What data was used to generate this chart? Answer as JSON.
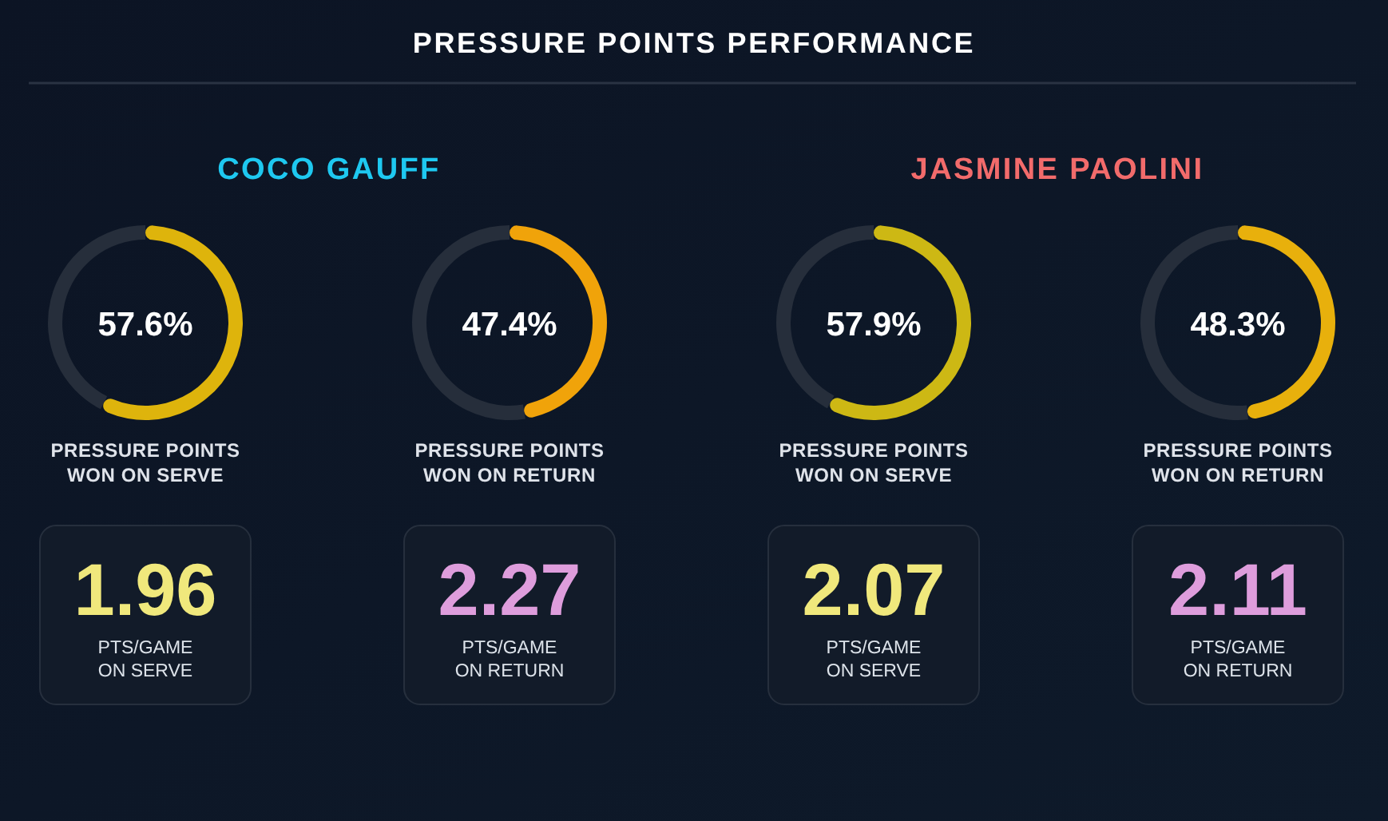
{
  "chart_data": [
    {
      "type": "other",
      "title": "PRESSURE POINTS PERFORMANCE"
    },
    {
      "type": "other",
      "title": "COCO GAUFF"
    },
    {
      "type": "other",
      "title": "JASMINE PAOLINI"
    },
    {
      "type": "donut",
      "categories": [
        null,
        null
      ],
      "values": [
        57.6,
        42.4
      ],
      "colors": [
        "#deb40c",
        "#262e3b"
      ],
      "value_labels": [
        "57.6%",
        null
      ],
      "xlabel": "PRESSURE POINTS WON ON SERVE"
    },
    {
      "type": "donut",
      "categories": [
        null,
        null
      ],
      "values": [
        47.4,
        52.6
      ],
      "colors": [
        "#f0a30a",
        "#262e3b"
      ],
      "value_labels": [
        "47.4%",
        null
      ],
      "xlabel": "PRESSURE POINTS WON ON RETURN"
    },
    {
      "type": "donut",
      "categories": [
        null,
        null
      ],
      "values": [
        57.9,
        42.1
      ],
      "colors": [
        "#cdb814",
        "#262e3b"
      ],
      "value_labels": [
        "57.9%",
        null
      ],
      "xlabel": "PRESSURE POINTS WON ON SERVE"
    },
    {
      "type": "donut",
      "categories": [
        null,
        null
      ],
      "values": [
        48.3,
        51.7
      ],
      "colors": [
        "#e8b00c",
        "#262e3b"
      ],
      "value_labels": [
        "48.3%",
        null
      ],
      "xlabel": "PRESSURE POINTS WON ON RETURN"
    },
    {
      "type": "other",
      "categories": [
        "PTS/GAME ON SERVE"
      ],
      "values": [
        1.96
      ],
      "data_labels": true
    },
    {
      "type": "other",
      "categories": [
        "PTS/GAME ON RETURN"
      ],
      "values": [
        2.27
      ],
      "data_labels": true
    },
    {
      "type": "other",
      "categories": [
        "PTS/GAME ON SERVE"
      ],
      "values": [
        2.07
      ],
      "data_labels": true
    },
    {
      "type": "other",
      "categories": [
        "PTS/GAME ON RETURN"
      ],
      "values": [
        2.11
      ],
      "data_labels": true
    }
  ]
}
